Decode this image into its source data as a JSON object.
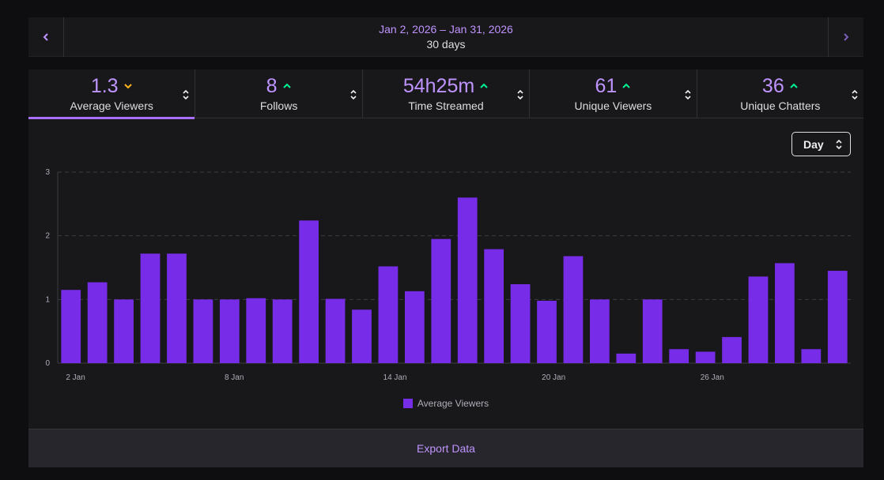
{
  "date_range": {
    "dates": "Jan 2, 2026 – Jan 31, 2026",
    "duration": "30 days",
    "prev_icon": "chevron-left-icon",
    "next_icon": "chevron-right-icon"
  },
  "tabs": [
    {
      "value": "1.3",
      "label": "Average Viewers",
      "trend": "down",
      "active": true
    },
    {
      "value": "8",
      "label": "Follows",
      "trend": "up",
      "active": false
    },
    {
      "value": "54h25m",
      "label": "Time Streamed",
      "trend": "up",
      "active": false
    },
    {
      "value": "61",
      "label": "Unique Viewers",
      "trend": "up",
      "active": false
    },
    {
      "value": "36",
      "label": "Unique Chatters",
      "trend": "up",
      "active": false
    }
  ],
  "colors": {
    "accent": "#bf94ff",
    "bar": "#772ce8",
    "trend_up": "#00f593",
    "trend_down": "#ffb31a"
  },
  "granularity": {
    "selected": "Day"
  },
  "chart_data": {
    "type": "bar",
    "categories": [
      "2 Jan",
      "3 Jan",
      "4 Jan",
      "5 Jan",
      "6 Jan",
      "7 Jan",
      "8 Jan",
      "9 Jan",
      "10 Jan",
      "11 Jan",
      "12 Jan",
      "13 Jan",
      "14 Jan",
      "15 Jan",
      "16 Jan",
      "17 Jan",
      "18 Jan",
      "19 Jan",
      "20 Jan",
      "21 Jan",
      "22 Jan",
      "23 Jan",
      "24 Jan",
      "25 Jan",
      "26 Jan",
      "27 Jan",
      "28 Jan",
      "29 Jan",
      "30 Jan",
      "31 Jan"
    ],
    "x_tick_labels": [
      "2 Jan",
      "8 Jan",
      "14 Jan",
      "20 Jan",
      "26 Jan"
    ],
    "series": [
      {
        "name": "Average Viewers",
        "values": [
          1.15,
          1.27,
          1.0,
          1.72,
          1.72,
          1.0,
          1.0,
          1.02,
          1.0,
          2.24,
          1.01,
          0.84,
          1.52,
          1.13,
          1.95,
          2.6,
          1.79,
          1.24,
          0.98,
          1.68,
          1.0,
          0.15,
          1.0,
          0.22,
          0.18,
          0.41,
          1.36,
          1.57,
          0.22,
          1.45
        ]
      }
    ],
    "ylim": [
      0,
      3
    ],
    "y_ticks": [
      0,
      1,
      2,
      3
    ],
    "grid": true,
    "legend": "bottom"
  },
  "export_label": "Export Data"
}
